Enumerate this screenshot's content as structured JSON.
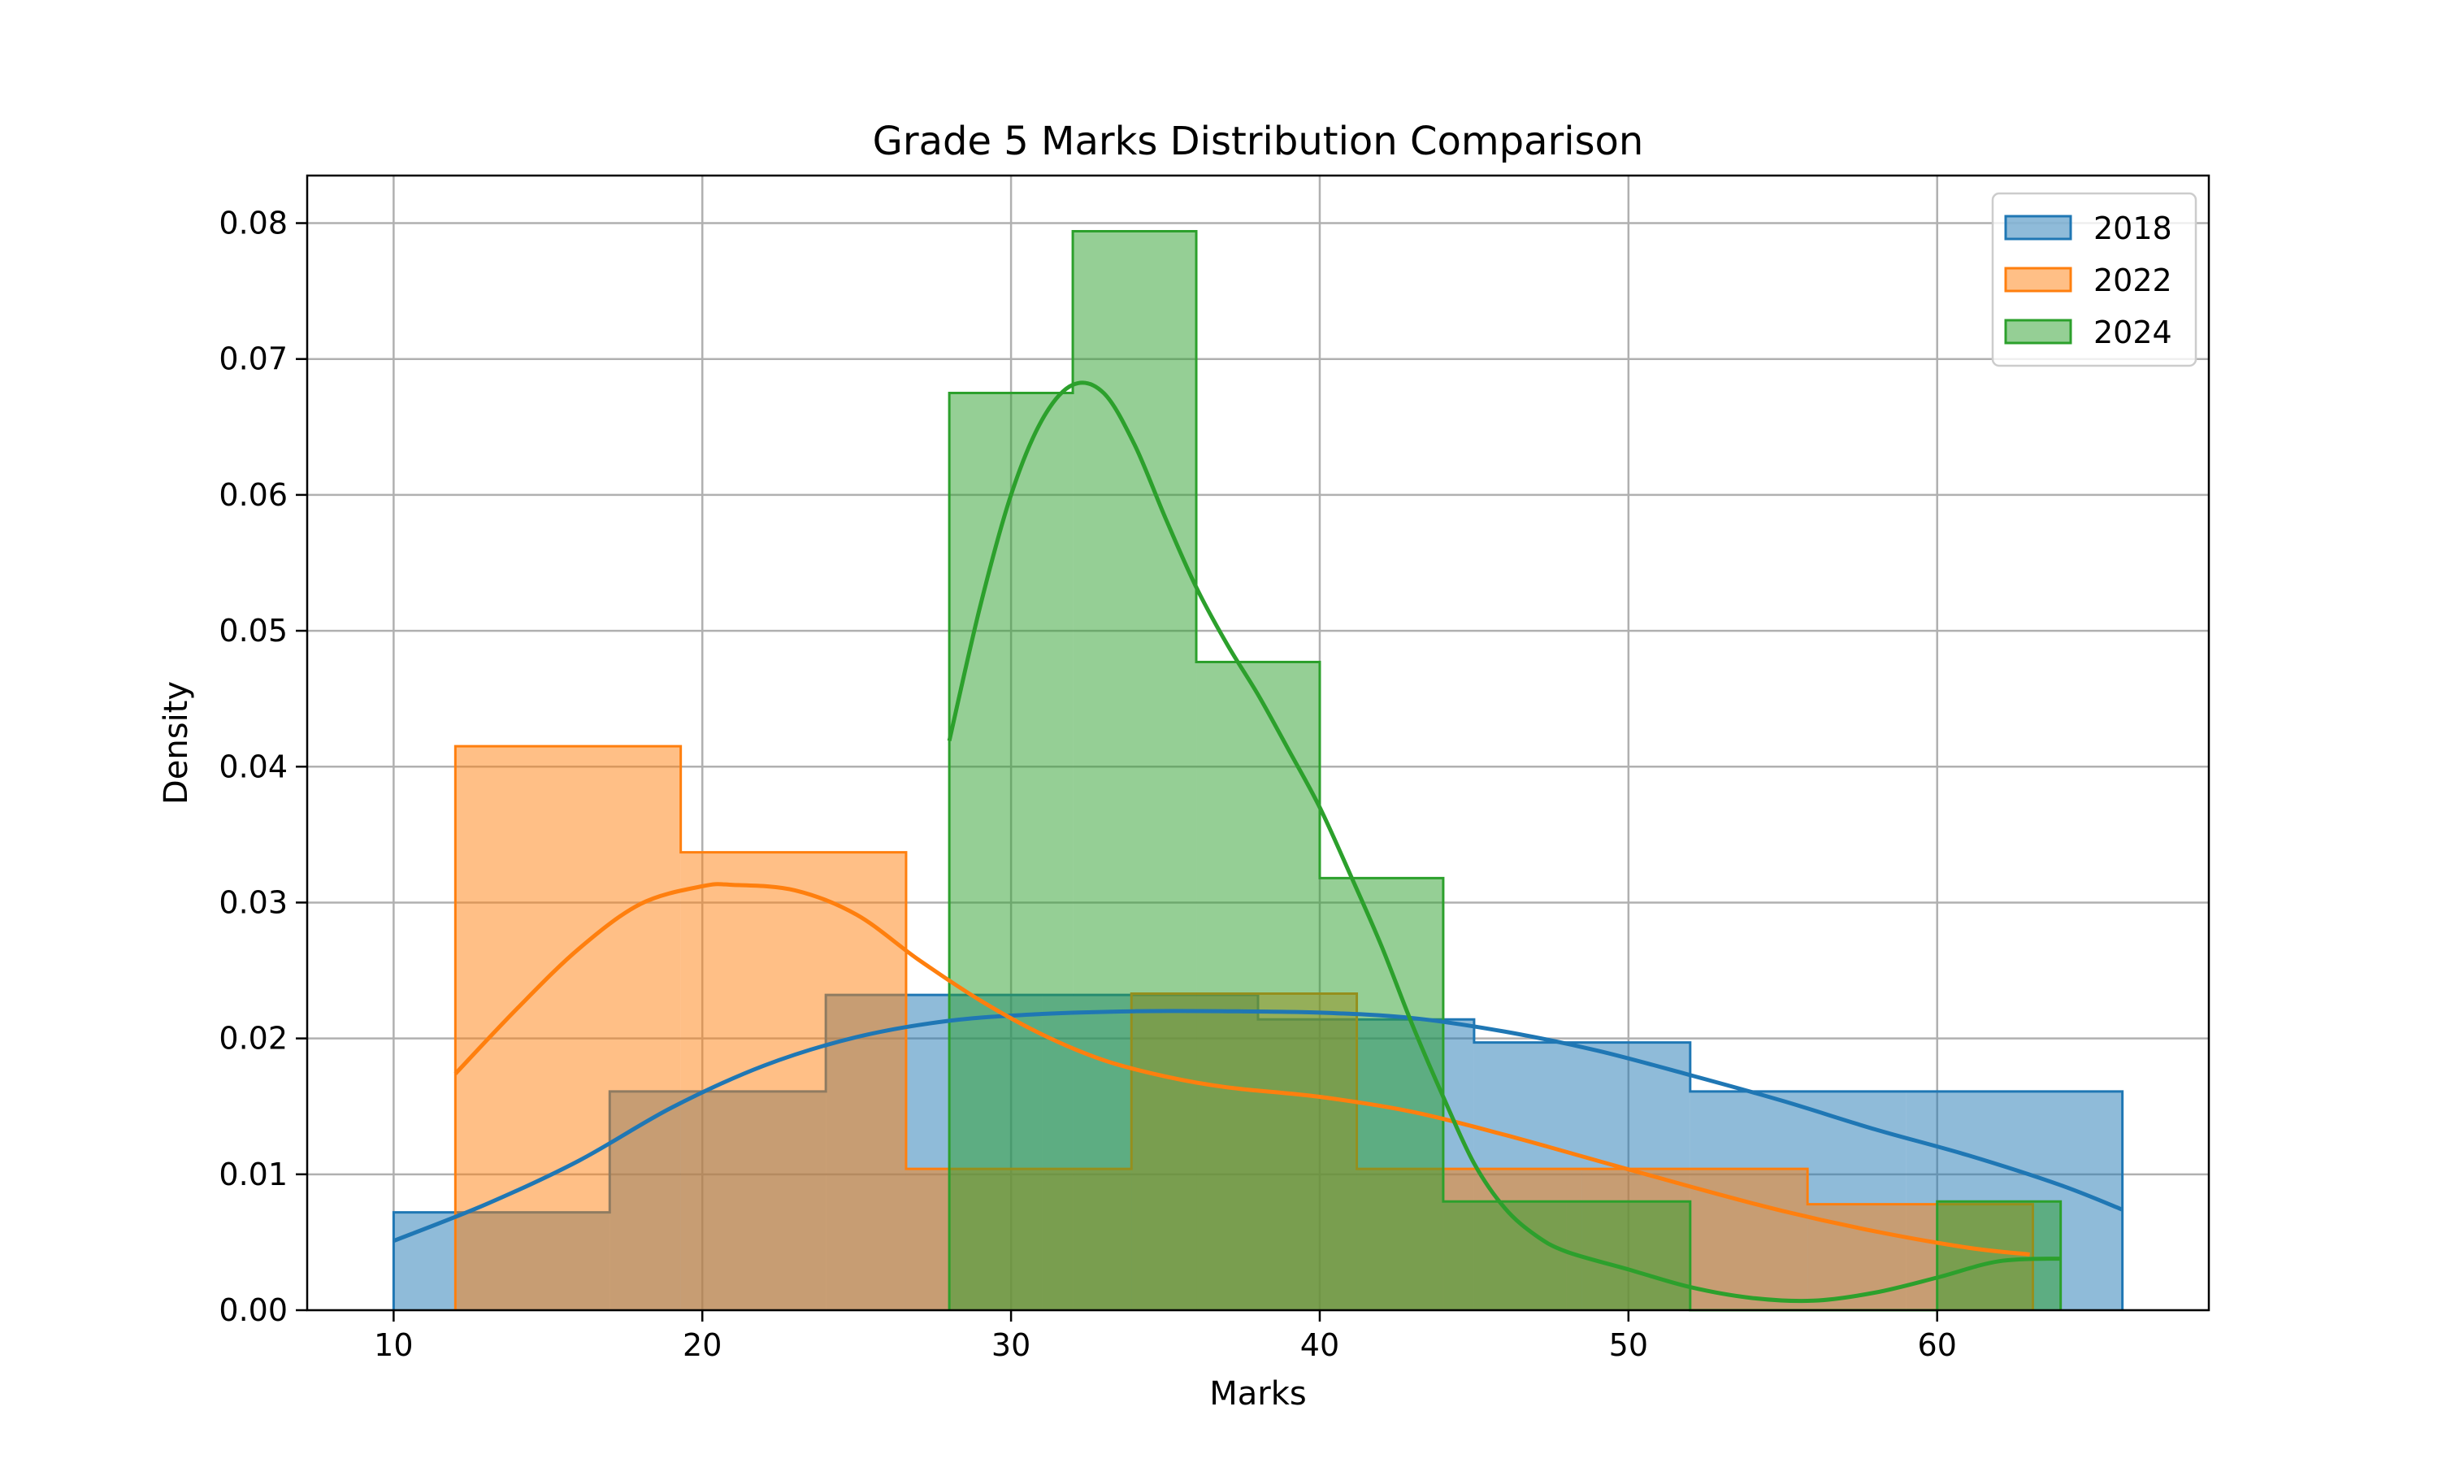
{
  "chart_data": {
    "type": "histogram",
    "title": "Grade 5 Marks Distribution Comparison",
    "xlabel": "Marks",
    "ylabel": "Density",
    "xlim": [
      7.2,
      68.8
    ],
    "ylim": [
      0,
      0.0835
    ],
    "xticks": [
      10,
      20,
      30,
      40,
      50,
      60
    ],
    "yticks": [
      0.0,
      0.01,
      0.02,
      0.03,
      0.04,
      0.05,
      0.06,
      0.07,
      0.08
    ],
    "xtick_labels": [
      "10",
      "20",
      "30",
      "40",
      "50",
      "60"
    ],
    "ytick_labels": [
      "0.00",
      "0.01",
      "0.02",
      "0.03",
      "0.04",
      "0.05",
      "0.06",
      "0.07",
      "0.08"
    ],
    "grid": true,
    "legend_position": "top-right",
    "series": [
      {
        "name": "2018",
        "color": "#1f77b4",
        "bin_edges": [
          10,
          17,
          24,
          31,
          38,
          45,
          52,
          59,
          66
        ],
        "densities": [
          0.0072,
          0.0161,
          0.0232,
          0.0232,
          0.0214,
          0.0197,
          0.0161,
          0.0161
        ],
        "kde": [
          [
            10,
            0.0051
          ],
          [
            13,
            0.0078
          ],
          [
            16,
            0.011
          ],
          [
            19,
            0.0149
          ],
          [
            22,
            0.018
          ],
          [
            25,
            0.0201
          ],
          [
            28,
            0.0213
          ],
          [
            31,
            0.0218
          ],
          [
            34,
            0.022
          ],
          [
            37,
            0.022
          ],
          [
            40,
            0.0219
          ],
          [
            43,
            0.0215
          ],
          [
            46,
            0.0205
          ],
          [
            49,
            0.0191
          ],
          [
            52,
            0.0173
          ],
          [
            55,
            0.0154
          ],
          [
            58,
            0.0133
          ],
          [
            61,
            0.0114
          ],
          [
            64,
            0.0092
          ],
          [
            66,
            0.0074
          ]
        ]
      },
      {
        "name": "2022",
        "color": "#ff7f0e",
        "bin_edges": [
          12,
          19.3,
          26.6,
          33.9,
          41.2,
          48.5,
          55.8,
          63.1
        ],
        "densities": [
          0.0415,
          0.0337,
          0.0104,
          0.0233,
          0.0104,
          0.0104,
          0.0078
        ],
        "kde": [
          [
            12,
            0.0174
          ],
          [
            14,
            0.0222
          ],
          [
            16,
            0.0266
          ],
          [
            18,
            0.0299
          ],
          [
            20,
            0.0312
          ],
          [
            21,
            0.0313
          ],
          [
            23,
            0.0309
          ],
          [
            25,
            0.0291
          ],
          [
            27,
            0.0258
          ],
          [
            29,
            0.0228
          ],
          [
            31,
            0.0203
          ],
          [
            33,
            0.0184
          ],
          [
            35,
            0.0172
          ],
          [
            37,
            0.0164
          ],
          [
            40,
            0.0157
          ],
          [
            43,
            0.0146
          ],
          [
            46,
            0.0129
          ],
          [
            49,
            0.011
          ],
          [
            52,
            0.0091
          ],
          [
            55,
            0.0073
          ],
          [
            58,
            0.0058
          ],
          [
            61,
            0.0046
          ],
          [
            63,
            0.0041
          ]
        ]
      },
      {
        "name": "2024",
        "color": "#2ca02c",
        "bin_edges": [
          28,
          32,
          36,
          40,
          44,
          48,
          52,
          56,
          60,
          64
        ],
        "densities": [
          0.0675,
          0.0794,
          0.0477,
          0.0318,
          0.008,
          0.008,
          0,
          0,
          0.008
        ],
        "kde": [
          [
            28,
            0.0419
          ],
          [
            29,
            0.0518
          ],
          [
            30,
            0.06
          ],
          [
            31,
            0.0655
          ],
          [
            32,
            0.0681
          ],
          [
            33,
            0.0675
          ],
          [
            34,
            0.0637
          ],
          [
            35,
            0.0583
          ],
          [
            36,
            0.0532
          ],
          [
            37,
            0.049
          ],
          [
            38,
            0.0453
          ],
          [
            39,
            0.0412
          ],
          [
            40,
            0.037
          ],
          [
            41,
            0.032
          ],
          [
            42,
            0.0268
          ],
          [
            43,
            0.021
          ],
          [
            44,
            0.0157
          ],
          [
            45,
            0.0108
          ],
          [
            46,
            0.0075
          ],
          [
            47,
            0.0055
          ],
          [
            48,
            0.0043
          ],
          [
            50,
            0.003
          ],
          [
            52,
            0.0017
          ],
          [
            54,
            0.0009
          ],
          [
            56,
            0.0007
          ],
          [
            58,
            0.0013
          ],
          [
            60,
            0.0024
          ],
          [
            62,
            0.0036
          ],
          [
            64,
            0.0038
          ]
        ]
      }
    ]
  }
}
